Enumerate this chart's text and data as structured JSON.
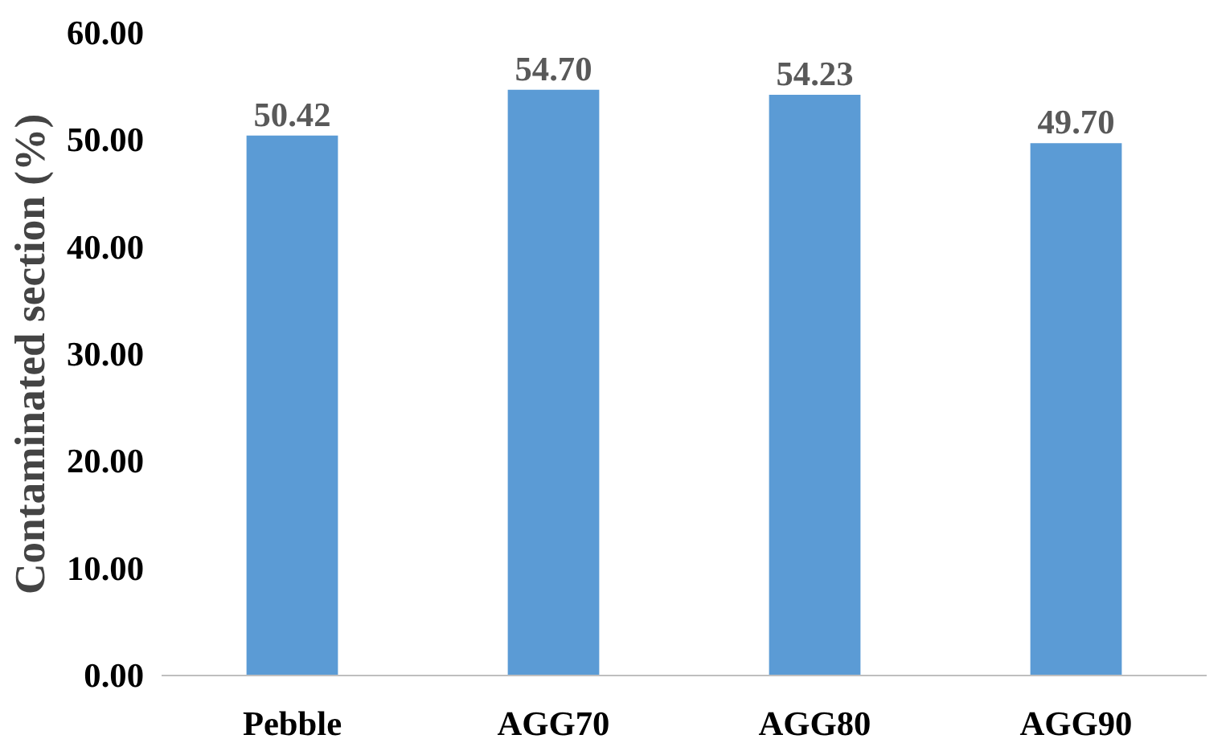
{
  "chart_data": {
    "type": "bar",
    "ylabel": "Contaminated section (%)",
    "categories": [
      "Pebble",
      "AGG70",
      "AGG80",
      "AGG90"
    ],
    "values": [
      50.42,
      54.7,
      54.23,
      49.7
    ],
    "value_labels": [
      "50.42",
      "54.70",
      "54.23",
      "49.70"
    ],
    "color": "#5b9bd5",
    "ylim": [
      0,
      60
    ],
    "yticks": [
      {
        "value": 0,
        "label": "0.00"
      },
      {
        "value": 10,
        "label": "10.00"
      },
      {
        "value": 20,
        "label": "20.00"
      },
      {
        "value": 30,
        "label": "30.00"
      },
      {
        "value": 40,
        "label": "40.00"
      },
      {
        "value": 50,
        "label": "50.00"
      },
      {
        "value": 60,
        "label": "60.00"
      }
    ],
    "grid": false
  }
}
